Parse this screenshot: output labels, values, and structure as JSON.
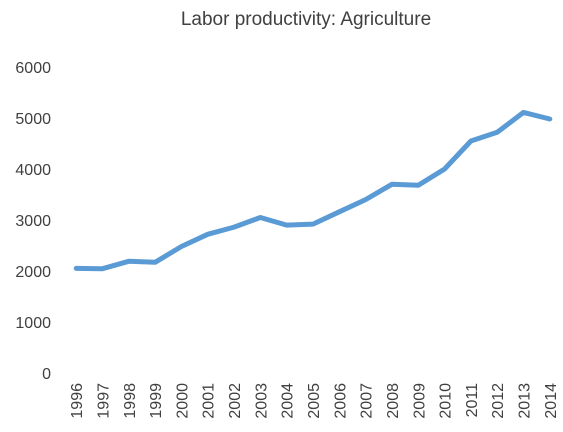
{
  "chart_data": {
    "type": "line",
    "title": "Labor productivity: Agriculture",
    "xlabel": "",
    "ylabel": "",
    "categories": [
      "1996",
      "1997",
      "1998",
      "1999",
      "2000",
      "2001",
      "2002",
      "2003",
      "2004",
      "2005",
      "2006",
      "2007",
      "2008",
      "2009",
      "2010",
      "2011",
      "2012",
      "2013",
      "2014"
    ],
    "series": [
      {
        "values": [
          2050,
          2045,
          2190,
          2170,
          2480,
          2720,
          2860,
          3050,
          2900,
          2920,
          3160,
          3400,
          3700,
          3680,
          4000,
          4550,
          4720,
          5110,
          4980
        ]
      }
    ],
    "ylim": [
      0,
      6000
    ],
    "yticks": [
      0,
      1000,
      2000,
      3000,
      4000,
      5000,
      6000
    ],
    "grid": false,
    "legend": "none",
    "colors": {
      "line": "#5B9BD5",
      "text": "#404040"
    }
  }
}
